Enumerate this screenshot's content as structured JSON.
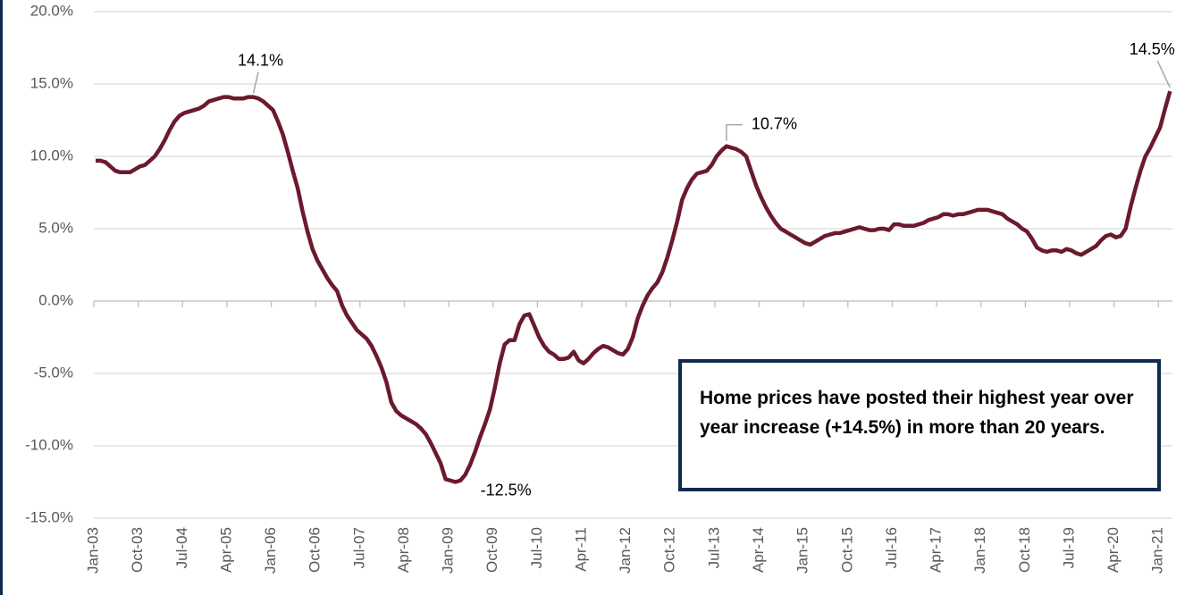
{
  "chart_data": {
    "type": "line",
    "categories": [
      "Jan-03",
      null,
      null,
      null,
      null,
      null,
      null,
      null,
      null,
      "Oct-03",
      null,
      null,
      null,
      null,
      null,
      null,
      null,
      null,
      "Jul-04",
      null,
      null,
      null,
      null,
      null,
      null,
      null,
      null,
      "Apr-05",
      null,
      null,
      null,
      null,
      null,
      null,
      null,
      null,
      "Jan-06",
      null,
      null,
      null,
      null,
      null,
      null,
      null,
      null,
      "Oct-06",
      null,
      null,
      null,
      null,
      null,
      null,
      null,
      null,
      "Jul-07",
      null,
      null,
      null,
      null,
      null,
      null,
      null,
      null,
      "Apr-08",
      null,
      null,
      null,
      null,
      null,
      null,
      null,
      null,
      "Jan-09",
      null,
      null,
      null,
      null,
      null,
      null,
      null,
      null,
      "Oct-09",
      null,
      null,
      null,
      null,
      null,
      null,
      null,
      null,
      "Jul-10",
      null,
      null,
      null,
      null,
      null,
      null,
      null,
      null,
      "Apr-11",
      null,
      null,
      null,
      null,
      null,
      null,
      null,
      null,
      "Jan-12",
      null,
      null,
      null,
      null,
      null,
      null,
      null,
      null,
      "Oct-12",
      null,
      null,
      null,
      null,
      null,
      null,
      null,
      null,
      "Jul-13",
      null,
      null,
      null,
      null,
      null,
      null,
      null,
      null,
      "Apr-14",
      null,
      null,
      null,
      null,
      null,
      null,
      null,
      null,
      "Jan-15",
      null,
      null,
      null,
      null,
      null,
      null,
      null,
      null,
      "Oct-15",
      null,
      null,
      null,
      null,
      null,
      null,
      null,
      null,
      "Jul-16",
      null,
      null,
      null,
      null,
      null,
      null,
      null,
      null,
      "Apr-17",
      null,
      null,
      null,
      null,
      null,
      null,
      null,
      null,
      "Jan-18",
      null,
      null,
      null,
      null,
      null,
      null,
      null,
      null,
      "Oct-18",
      null,
      null,
      null,
      null,
      null,
      null,
      null,
      null,
      "Jul-19",
      null,
      null,
      null,
      null,
      null,
      null,
      null,
      null,
      "Apr-20",
      null,
      null,
      null,
      null,
      null,
      null,
      null,
      null,
      "Jan-21",
      null,
      null
    ],
    "series": [
      {
        "color": "#6b1a2d",
        "values": [
          9.7,
          9.7,
          9.6,
          9.3,
          9.0,
          8.9,
          8.9,
          8.9,
          9.1,
          9.3,
          9.4,
          9.7,
          10.0,
          10.5,
          11.1,
          11.8,
          12.4,
          12.8,
          13.0,
          13.1,
          13.2,
          13.3,
          13.5,
          13.8,
          13.9,
          14.0,
          14.1,
          14.1,
          14.0,
          14.0,
          14.0,
          14.1,
          14.1,
          14.0,
          13.8,
          13.5,
          13.2,
          12.4,
          11.5,
          10.3,
          9.0,
          7.8,
          6.2,
          4.8,
          3.6,
          2.8,
          2.2,
          1.6,
          1.1,
          0.7,
          -0.3,
          -1.0,
          -1.5,
          -2.0,
          -2.3,
          -2.6,
          -3.1,
          -3.8,
          -4.6,
          -5.6,
          -7.0,
          -7.6,
          -7.9,
          -8.1,
          -8.3,
          -8.5,
          -8.8,
          -9.2,
          -9.8,
          -10.5,
          -11.2,
          -12.3,
          -12.4,
          -12.5,
          -12.4,
          -12.0,
          -11.3,
          -10.4,
          -9.4,
          -8.5,
          -7.5,
          -6.0,
          -4.3,
          -3.0,
          -2.7,
          -2.7,
          -1.6,
          -1.0,
          -0.9,
          -1.7,
          -2.5,
          -3.1,
          -3.5,
          -3.7,
          -4.0,
          -4.0,
          -3.9,
          -3.5,
          -4.1,
          -4.3,
          -4.0,
          -3.6,
          -3.3,
          -3.1,
          -3.2,
          -3.4,
          -3.6,
          -3.7,
          -3.3,
          -2.5,
          -1.2,
          -0.3,
          0.4,
          0.9,
          1.3,
          2.0,
          3.0,
          4.2,
          5.5,
          7.0,
          7.8,
          8.4,
          8.8,
          8.9,
          9.0,
          9.4,
          10.0,
          10.4,
          10.7,
          10.6,
          10.5,
          10.3,
          10.0,
          9.0,
          8.0,
          7.2,
          6.5,
          5.9,
          5.4,
          5.0,
          4.8,
          4.6,
          4.4,
          4.2,
          4.0,
          3.9,
          4.1,
          4.3,
          4.5,
          4.6,
          4.7,
          4.7,
          4.8,
          4.9,
          5.0,
          5.1,
          5.0,
          4.9,
          4.9,
          5.0,
          5.0,
          4.9,
          5.3,
          5.3,
          5.2,
          5.2,
          5.2,
          5.3,
          5.4,
          5.6,
          5.7,
          5.8,
          6.0,
          6.0,
          5.9,
          6.0,
          6.0,
          6.1,
          6.2,
          6.3,
          6.3,
          6.3,
          6.2,
          6.1,
          6.0,
          5.7,
          5.5,
          5.3,
          5.0,
          4.8,
          4.3,
          3.7,
          3.5,
          3.4,
          3.5,
          3.5,
          3.4,
          3.6,
          3.5,
          3.3,
          3.2,
          3.4,
          3.6,
          3.8,
          4.2,
          4.5,
          4.6,
          4.4,
          4.5,
          5.0,
          6.5,
          7.8,
          9.0,
          10.0,
          10.6,
          11.3,
          12.0,
          13.3,
          14.5
        ],
        "value_labels": [
          null,
          null,
          null,
          null,
          null,
          null,
          null,
          null,
          null,
          null,
          null,
          null,
          null,
          null,
          null,
          null,
          null,
          null,
          null,
          null,
          null,
          null,
          null,
          null,
          null,
          null,
          null,
          null,
          null,
          null,
          null,
          null,
          "14.1%",
          null,
          null,
          null,
          null,
          null,
          null,
          null,
          null,
          null,
          null,
          null,
          null,
          null,
          null,
          null,
          null,
          null,
          null,
          null,
          null,
          null,
          null,
          null,
          null,
          null,
          null,
          null,
          null,
          null,
          null,
          null,
          null,
          null,
          null,
          null,
          null,
          null,
          null,
          null,
          null,
          "-12.5%",
          null,
          null,
          null,
          null,
          null,
          null,
          null,
          null,
          null,
          null,
          null,
          null,
          null,
          null,
          null,
          null,
          null,
          null,
          null,
          null,
          null,
          null,
          null,
          null,
          null,
          null,
          null,
          null,
          null,
          null,
          null,
          null,
          null,
          null,
          null,
          null,
          null,
          null,
          null,
          null,
          null,
          null,
          null,
          null,
          null,
          null,
          null,
          null,
          null,
          null,
          null,
          null,
          null,
          null,
          "10.7%",
          null,
          null,
          null,
          null,
          null,
          null,
          null,
          null,
          null,
          null,
          null,
          null,
          null,
          null,
          null,
          null,
          null,
          null,
          null,
          null,
          null,
          null,
          null,
          null,
          null,
          null,
          null,
          null,
          null,
          null,
          null,
          null,
          null,
          null,
          null,
          null,
          null,
          null,
          null,
          null,
          null,
          null,
          null,
          null,
          null,
          null,
          null,
          null,
          null,
          null,
          null,
          null,
          null,
          null,
          null,
          null,
          null,
          null,
          null,
          null,
          null,
          null,
          null,
          null,
          null,
          null,
          null,
          null,
          null,
          null,
          null,
          null,
          null,
          null,
          null,
          null,
          null,
          null,
          null,
          null,
          null,
          null,
          null,
          null,
          null,
          null,
          null,
          null,
          null,
          "14.5%"
        ]
      }
    ],
    "ylim": [
      -15,
      20
    ],
    "yticks": [
      {
        "value": -15,
        "label": "-15.0%"
      },
      {
        "value": -10,
        "label": "-10.0%"
      },
      {
        "value": -5,
        "label": "-5.0%"
      },
      {
        "value": 0,
        "label": "0.0%"
      },
      {
        "value": 5,
        "label": "5.0%"
      },
      {
        "value": 10,
        "label": "10.0%"
      },
      {
        "value": 15,
        "label": "15.0%"
      },
      {
        "value": 20,
        "label": "20.0%"
      }
    ],
    "grid": true,
    "annotation": "Home prices have posted their highest year over year increase (+14.5%) in more than 20 years."
  }
}
